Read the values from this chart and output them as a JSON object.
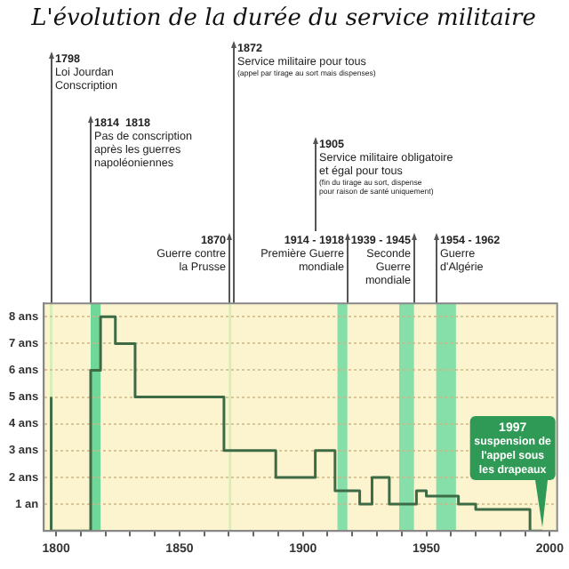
{
  "chart_data": {
    "type": "step",
    "title": "L'évolution de la durée du service militaire",
    "x": [
      1798,
      1814,
      1818,
      1824,
      1832,
      1868,
      1889,
      1905,
      1913,
      1923,
      1928,
      1935,
      1946,
      1950,
      1963,
      1970,
      1992,
      1997
    ],
    "values": [
      5,
      0,
      6,
      8,
      7,
      5,
      3,
      2,
      3,
      1.5,
      1,
      2,
      1,
      1.5,
      1.3,
      1,
      0.8,
      0
    ],
    "color": "#3d6b45",
    "xlim": [
      1795,
      2003
    ],
    "xticks": [
      1800,
      {
        "value": 1810,
        "label": null
      },
      {
        "value": 1820,
        "label": null
      },
      {
        "value": 1830,
        "label": null
      },
      {
        "value": 1840,
        "label": null
      },
      1850,
      {
        "value": 1860,
        "label": null
      },
      {
        "value": 1870,
        "label": null
      },
      {
        "value": 1880,
        "label": null
      },
      {
        "value": 1890,
        "label": null
      },
      1900,
      {
        "value": 1910,
        "label": null
      },
      {
        "value": 1920,
        "label": null
      },
      {
        "value": 1930,
        "label": null
      },
      {
        "value": 1940,
        "label": null
      },
      1950,
      {
        "value": 1960,
        "label": null
      },
      {
        "value": 1970,
        "label": null
      },
      {
        "value": 1980,
        "label": null
      },
      {
        "value": 1990,
        "label": null
      },
      2000
    ],
    "ylim": [
      0,
      8.5
    ],
    "yticks": [
      {
        "value": 1,
        "label": "1 an"
      },
      {
        "value": 2,
        "label": "2 ans"
      },
      {
        "value": 3,
        "label": "3 ans"
      },
      {
        "value": 4,
        "label": "4 ans"
      },
      {
        "value": 5,
        "label": "5 ans"
      },
      {
        "value": 6,
        "label": "6 ans"
      },
      {
        "value": 7,
        "label": "7 ans"
      },
      {
        "value": 8,
        "label": "8 ans"
      }
    ],
    "grid": "y",
    "legend": false,
    "marker": "none",
    "line_style": "solid",
    "ref_lines": [
      {
        "axis": "x",
        "value": 1798,
        "color": "#d5efb5"
      }
    ],
    "bands": [
      {
        "axis": "x",
        "from": 1814,
        "to": 1818,
        "color": "#6fd898"
      },
      {
        "axis": "x",
        "from": 1870,
        "to": 1871,
        "color": "#d5efb5"
      },
      {
        "axis": "x",
        "from": 1914,
        "to": 1918,
        "color": "#86dfa8"
      },
      {
        "axis": "x",
        "from": 1939,
        "to": 1945,
        "color": "#86dfa8"
      },
      {
        "axis": "x",
        "from": 1954,
        "to": 1962,
        "color": "#86dfa8"
      }
    ],
    "annotations": [
      "1798\nLoi Jourdan\nConscription",
      "1814  1818\nPas de conscription\naprès les guerres\nnapoléoniennes",
      "1872\nService militaire pour tous\n(appel par tirage au sort mais dispenses)",
      "1905\nService militaire obligatoire\net égal pour tous\n(fin du tirage au sort, dispense\npour raison de santé uniquement)",
      "1870\nGuerre contre\nla Prusse",
      "1914 - 1918\nPremière Guerre\nmondiale",
      "1939 - 1945\nSeconde\nGuerre\nmondiale",
      "1954 - 1962\nGuerre\nd'Algérie",
      {
        "text": "1997\nsuspension de\nl'appel sous\nles drapeaux",
        "x": 1997,
        "y": 0
      }
    ]
  }
}
